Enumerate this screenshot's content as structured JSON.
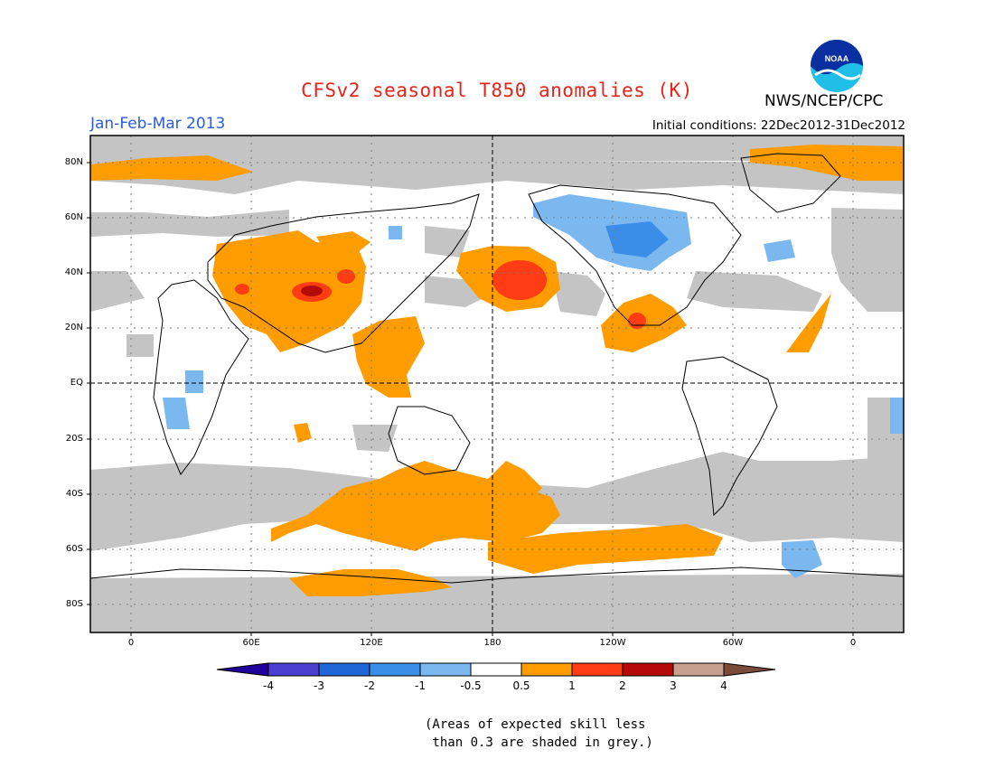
{
  "title": "CFSv2 seasonal T850 anomalies (K)",
  "agency": "NWS/NCEP/CPC",
  "logo_text": "NOAA",
  "season": "Jan-Feb-Mar 2013",
  "initial_conditions": "Initial conditions: 22Dec2012-31Dec2012",
  "lat_labels": [
    "80N",
    "60N",
    "40N",
    "20N",
    "EQ",
    "20S",
    "40S",
    "60S",
    "80S"
  ],
  "lon_labels": [
    "0",
    "60E",
    "120E",
    "180",
    "120W",
    "60W",
    "0"
  ],
  "colorbar": {
    "labels": [
      "-4",
      "-3",
      "-2",
      "-1",
      "-0.5",
      "0.5",
      "1",
      "2",
      "3",
      "4"
    ],
    "colors": [
      "#20009a",
      "#4a3fcf",
      "#1f66d6",
      "#3b8ee8",
      "#7cb8f0",
      "#ffffff",
      "#ff9c00",
      "#ff3c14",
      "#b40a0a",
      "#c8a090",
      "#7b4b3a"
    ]
  },
  "skill_note": "(Areas of expected skill less\n than 0.3 are shaded in grey.)",
  "colors": {
    "grey_skill": "#c4c4c4",
    "title": "#e8231a",
    "season": "#2b5be0"
  }
}
